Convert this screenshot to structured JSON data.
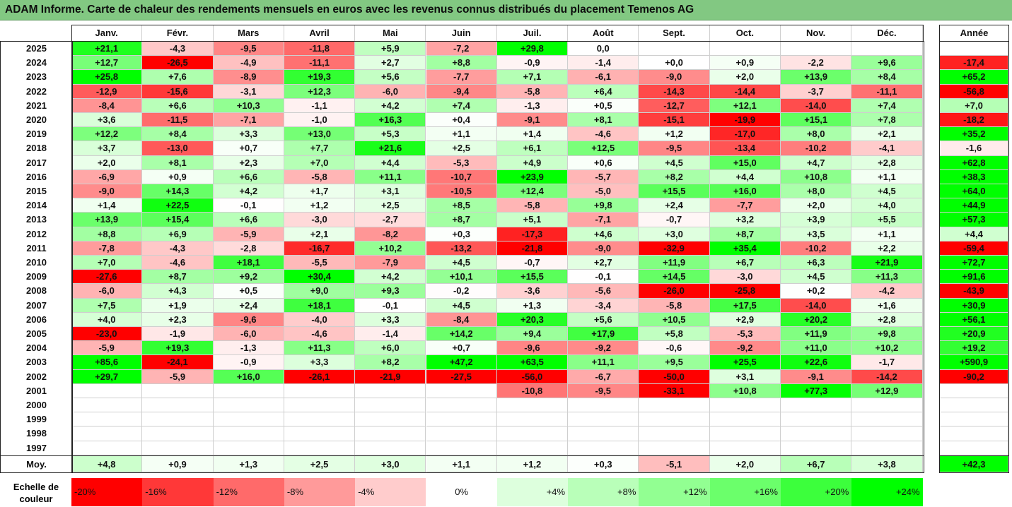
{
  "title": "ADAM Informe. Carte de chaleur des rendements mensuels en euros avec les revenus connus distribués du placement Temenos AG",
  "chart_data": {
    "type": "heatmap",
    "months": [
      "Janv.",
      "Févr.",
      "Mars",
      "Avril",
      "Mai",
      "Juin",
      "Juil.",
      "Août",
      "Sept.",
      "Oct.",
      "Nov.",
      "Déc."
    ],
    "year_header": "Année",
    "avg_label": "Moy.",
    "rows": [
      {
        "year": "2025",
        "values": [
          "+21,1",
          "-4,3",
          "-9,5",
          "-11,8",
          "+5,9",
          "-7,2",
          "+29,8",
          "0,0",
          "",
          "",
          "",
          ""
        ],
        "annual": ""
      },
      {
        "year": "2024",
        "values": [
          "+12,7",
          "-26,5",
          "-4,9",
          "-11,1",
          "+2,7",
          "+8,8",
          "-0,9",
          "-1,4",
          "+0,0",
          "+0,9",
          "-2,2",
          "+9,6"
        ],
        "annual": "-17,4"
      },
      {
        "year": "2023",
        "values": [
          "+25,8",
          "+7,6",
          "-8,9",
          "+19,3",
          "+5,6",
          "-7,7",
          "+7,1",
          "-6,1",
          "-9,0",
          "+2,0",
          "+13,9",
          "+8,4"
        ],
        "annual": "+65,2"
      },
      {
        "year": "2022",
        "values": [
          "-12,9",
          "-15,6",
          "-3,1",
          "+12,3",
          "-6,0",
          "-9,4",
          "-5,8",
          "+6,4",
          "-14,3",
          "-14,4",
          "-3,7",
          "-11,1"
        ],
        "annual": "-56,8"
      },
      {
        "year": "2021",
        "values": [
          "-8,4",
          "+6,6",
          "+10,3",
          "-1,1",
          "+4,2",
          "+7,4",
          "-1,3",
          "+0,5",
          "-12,7",
          "+12,1",
          "-14,0",
          "+7,4"
        ],
        "annual": "+7,0"
      },
      {
        "year": "2020",
        "values": [
          "+3,6",
          "-11,5",
          "-7,1",
          "-1,0",
          "+16,3",
          "+0,4",
          "-9,1",
          "+8,1",
          "-15,1",
          "-19,9",
          "+15,1",
          "+7,8"
        ],
        "annual": "-18,2"
      },
      {
        "year": "2019",
        "values": [
          "+12,2",
          "+8,4",
          "+3,3",
          "+13,0",
          "+5,3",
          "+1,1",
          "+1,4",
          "-4,6",
          "+1,2",
          "-17,0",
          "+8,0",
          "+2,1"
        ],
        "annual": "+35,2"
      },
      {
        "year": "2018",
        "values": [
          "+3,7",
          "-13,0",
          "+0,7",
          "+7,7",
          "+21,6",
          "+2,5",
          "+6,1",
          "+12,5",
          "-9,5",
          "-13,4",
          "-10,2",
          "-4,1"
        ],
        "annual": "-1,6"
      },
      {
        "year": "2017",
        "values": [
          "+2,0",
          "+8,1",
          "+2,3",
          "+7,0",
          "+4,4",
          "-5,3",
          "+4,9",
          "+0,6",
          "+4,5",
          "+15,0",
          "+4,7",
          "+2,8"
        ],
        "annual": "+62,8"
      },
      {
        "year": "2016",
        "values": [
          "-6,9",
          "+0,9",
          "+6,6",
          "-5,8",
          "+11,1",
          "-10,7",
          "+23,9",
          "-5,7",
          "+8,2",
          "+4,4",
          "+10,8",
          "+1,1"
        ],
        "annual": "+38,3"
      },
      {
        "year": "2015",
        "values": [
          "-9,0",
          "+14,3",
          "+4,2",
          "+1,7",
          "+3,1",
          "-10,5",
          "+12,4",
          "-5,0",
          "+15,5",
          "+16,0",
          "+8,0",
          "+4,5"
        ],
        "annual": "+64,0"
      },
      {
        "year": "2014",
        "values": [
          "+1,4",
          "+22,5",
          "-0,1",
          "+1,2",
          "+2,5",
          "+8,5",
          "-5,8",
          "+9,8",
          "+2,4",
          "-7,7",
          "+2,0",
          "+4,0"
        ],
        "annual": "+44,9"
      },
      {
        "year": "2013",
        "values": [
          "+13,9",
          "+15,4",
          "+6,6",
          "-3,0",
          "-2,7",
          "+8,7",
          "+5,1",
          "-7,1",
          "-0,7",
          "+3,2",
          "+3,9",
          "+5,5"
        ],
        "annual": "+57,3"
      },
      {
        "year": "2012",
        "values": [
          "+8,8",
          "+6,9",
          "-5,9",
          "+2,1",
          "-8,2",
          "+0,3",
          "-17,3",
          "+4,6",
          "+3,0",
          "+8,7",
          "+3,5",
          "+1,1"
        ],
        "annual": "+4,4"
      },
      {
        "year": "2011",
        "values": [
          "-7,8",
          "-4,3",
          "-2,8",
          "-16,7",
          "+10,2",
          "-13,2",
          "-21,8",
          "-9,0",
          "-32,9",
          "+35,4",
          "-10,2",
          "+2,2"
        ],
        "annual": "-59,4"
      },
      {
        "year": "2010",
        "values": [
          "+7,0",
          "-4,6",
          "+18,1",
          "-5,5",
          "-7,9",
          "+4,5",
          "-0,7",
          "+2,7",
          "+11,9",
          "+6,7",
          "+6,3",
          "+21,9"
        ],
        "annual": "+72,7"
      },
      {
        "year": "2009",
        "values": [
          "-27,6",
          "+8,7",
          "+9,2",
          "+30,4",
          "+4,2",
          "+10,1",
          "+15,5",
          "-0,1",
          "+14,5",
          "-3,0",
          "+4,5",
          "+11,3"
        ],
        "annual": "+91,6"
      },
      {
        "year": "2008",
        "values": [
          "-6,0",
          "+4,3",
          "+0,5",
          "+9,0",
          "+9,3",
          "-0,2",
          "-3,6",
          "-5,6",
          "-26,0",
          "-25,8",
          "+0,2",
          "-4,2"
        ],
        "annual": "-43,9"
      },
      {
        "year": "2007",
        "values": [
          "+7,5",
          "+1,9",
          "+2,4",
          "+18,1",
          "-0,1",
          "+4,5",
          "+1,3",
          "-3,4",
          "-5,8",
          "+17,5",
          "-14,0",
          "+1,6"
        ],
        "annual": "+30,9"
      },
      {
        "year": "2006",
        "values": [
          "+4,0",
          "+2,3",
          "-9,6",
          "-4,0",
          "+3,3",
          "-8,4",
          "+20,3",
          "+5,6",
          "+10,5",
          "+2,9",
          "+20,2",
          "+2,8"
        ],
        "annual": "+56,1"
      },
      {
        "year": "2005",
        "values": [
          "-23,0",
          "-1,9",
          "-6,0",
          "-4,6",
          "-1,4",
          "+14,2",
          "+9,4",
          "+17,9",
          "+5,8",
          "-5,3",
          "+11,9",
          "+9,8"
        ],
        "annual": "+20,9"
      },
      {
        "year": "2004",
        "values": [
          "-5,9",
          "+19,3",
          "-1,3",
          "+11,3",
          "+6,0",
          "+0,7",
          "-9,6",
          "-9,2",
          "-0,6",
          "-9,2",
          "+11,0",
          "+10,2"
        ],
        "annual": "+19,2"
      },
      {
        "year": "2003",
        "values": [
          "+85,6",
          "-24,1",
          "-0,9",
          "+3,3",
          "+8,2",
          "+47,2",
          "+63,5",
          "+11,1",
          "+9,5",
          "+25,5",
          "+22,6",
          "-1,7"
        ],
        "annual": "+590,9"
      },
      {
        "year": "2002",
        "values": [
          "+29,7",
          "-5,9",
          "+16,0",
          "-26,1",
          "-21,9",
          "-27,5",
          "-56,0",
          "-6,7",
          "-50,0",
          "+3,1",
          "-9,1",
          "-14,2"
        ],
        "annual": "-90,2"
      },
      {
        "year": "2001",
        "values": [
          "",
          "",
          "",
          "",
          "",
          "",
          "-10,8",
          "-9,5",
          "-33,1",
          "+10,8",
          "+77,3",
          "+12,9"
        ],
        "annual": ""
      },
      {
        "year": "2000",
        "values": [
          "",
          "",
          "",
          "",
          "",
          "",
          "",
          "",
          "",
          "",
          "",
          ""
        ],
        "annual": ""
      },
      {
        "year": "1999",
        "values": [
          "",
          "",
          "",
          "",
          "",
          "",
          "",
          "",
          "",
          "",
          "",
          ""
        ],
        "annual": ""
      },
      {
        "year": "1998",
        "values": [
          "",
          "",
          "",
          "",
          "",
          "",
          "",
          "",
          "",
          "",
          "",
          ""
        ],
        "annual": ""
      },
      {
        "year": "1997",
        "values": [
          "",
          "",
          "",
          "",
          "",
          "",
          "",
          "",
          "",
          "",
          "",
          ""
        ],
        "annual": ""
      }
    ],
    "averages": [
      "+4,8",
      "+0,9",
      "+1,3",
      "+2,5",
      "+3,0",
      "+1,1",
      "+1,2",
      "+0,3",
      "-5,1",
      "+2,0",
      "+6,7",
      "+3,8"
    ],
    "annual_average": "+42,3",
    "legend_label": "Echelle de couleur",
    "legend": [
      {
        "label": "-20%",
        "color": "#ff0000"
      },
      {
        "label": "-16%",
        "color": "#ff3838"
      },
      {
        "label": "-12%",
        "color": "#ff6a6a"
      },
      {
        "label": "-8%",
        "color": "#ff9a9a"
      },
      {
        "label": "-4%",
        "color": "#ffcccc"
      },
      {
        "label": "0%",
        "color": "#ffffff"
      },
      {
        "label": "+4%",
        "color": "#ddffdd"
      },
      {
        "label": "+8%",
        "color": "#b9ffb9"
      },
      {
        "label": "+12%",
        "color": "#92ff92"
      },
      {
        "label": "+16%",
        "color": "#6bff6b"
      },
      {
        "label": "+20%",
        "color": "#3cff3c"
      },
      {
        "label": "+24%",
        "color": "#00ff00"
      }
    ]
  }
}
